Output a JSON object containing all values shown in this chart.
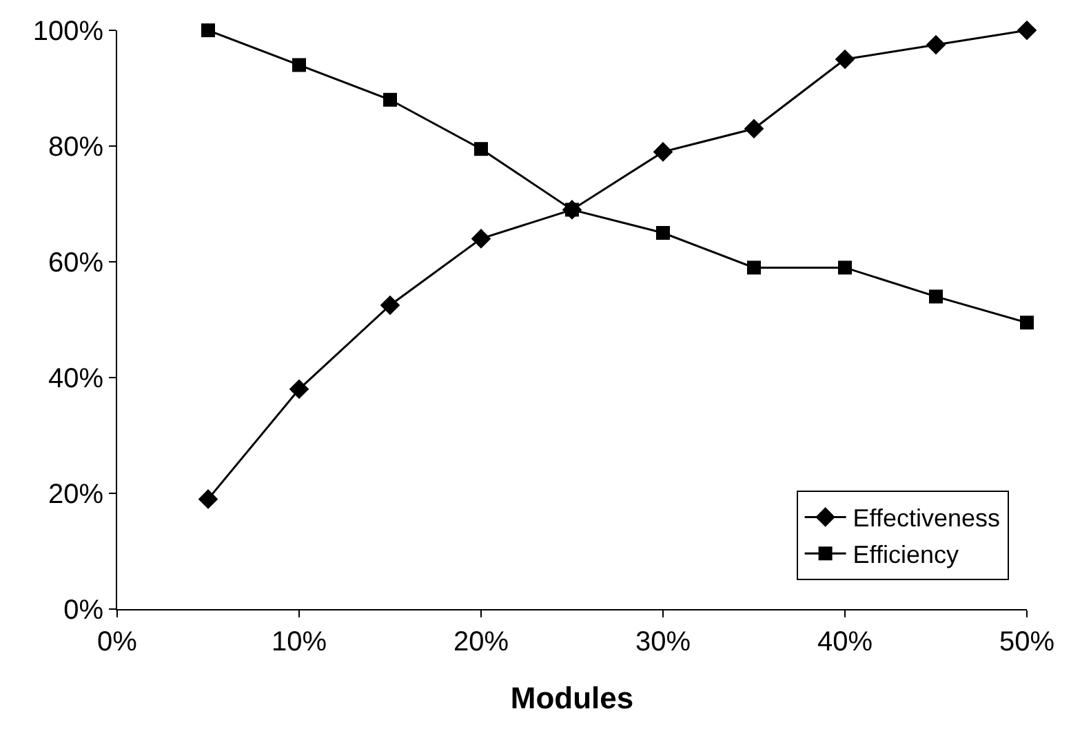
{
  "chart_data": {
    "type": "line",
    "xlabel": "Modules",
    "x": [
      5,
      10,
      15,
      20,
      25,
      30,
      35,
      40,
      45,
      50
    ],
    "series": [
      {
        "name": "Effectiveness",
        "color": "#000000",
        "marker": "diamond",
        "values": [
          19,
          38,
          52.5,
          64,
          69,
          79,
          83,
          95,
          97.5,
          100
        ]
      },
      {
        "name": "Efficiency",
        "color": "#000000",
        "marker": "square",
        "values": [
          100,
          94,
          88,
          79.5,
          69,
          65,
          59,
          59,
          54,
          49.5
        ]
      }
    ],
    "xlim": [
      0,
      50
    ],
    "xticks": [
      {
        "value": 0,
        "label": "0%"
      },
      {
        "value": 10,
        "label": "10%"
      },
      {
        "value": 20,
        "label": "20%"
      },
      {
        "value": 30,
        "label": "30%"
      },
      {
        "value": 40,
        "label": "40%"
      },
      {
        "value": 50,
        "label": "50%"
      }
    ],
    "ylim": [
      0,
      100
    ],
    "yticks": [
      {
        "value": 0,
        "label": "0%"
      },
      {
        "value": 20,
        "label": "20%"
      },
      {
        "value": 40,
        "label": "40%"
      },
      {
        "value": 60,
        "label": "60%"
      },
      {
        "value": 80,
        "label": "80%"
      },
      {
        "value": 100,
        "label": "100%"
      }
    ],
    "legend": "bottom right",
    "line_style": "solid"
  }
}
